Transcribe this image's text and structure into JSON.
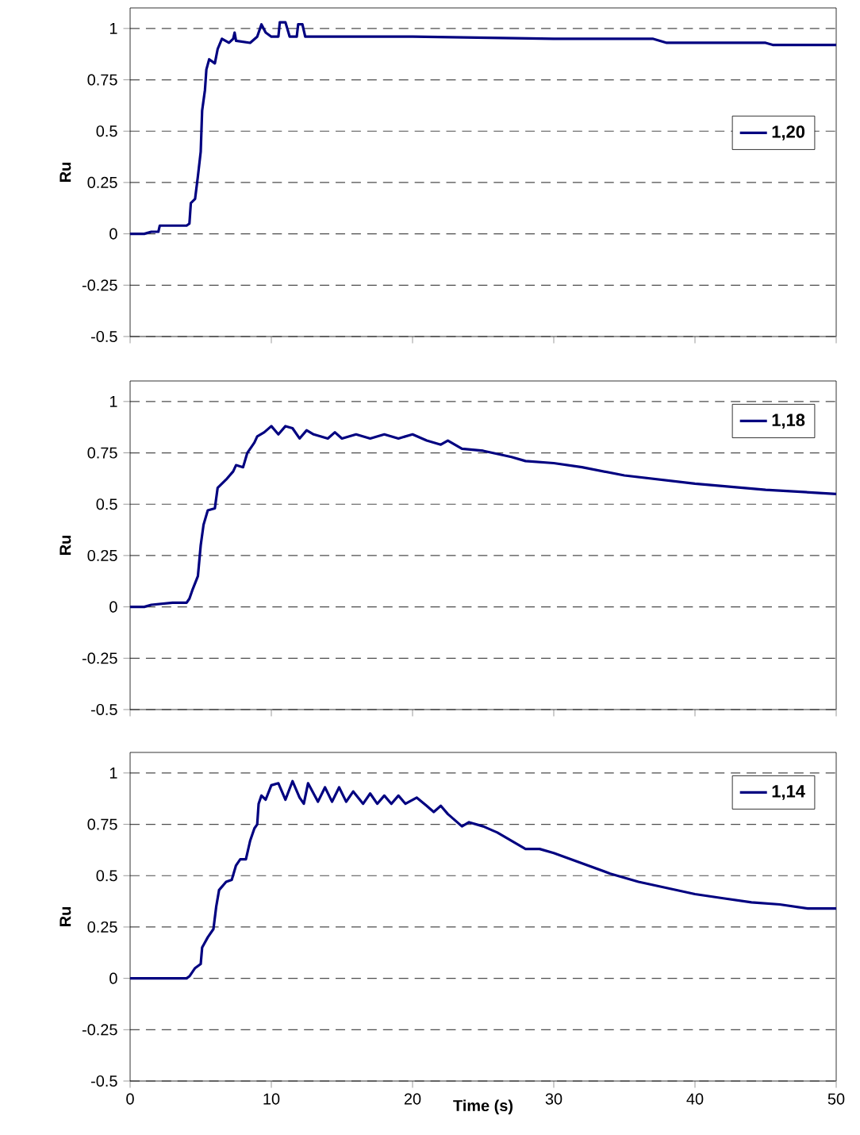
{
  "chart_data": [
    {
      "type": "line",
      "ylabel": "Ru",
      "xlim": [
        0,
        50
      ],
      "xticks": [
        0,
        10,
        20,
        30,
        40,
        50
      ],
      "ylim": [
        -0.5,
        1.1
      ],
      "yticks": [
        -0.5,
        -0.25,
        0,
        0.25,
        0.5,
        0.75,
        1
      ],
      "grid": "y",
      "legend": "right",
      "tick_labels": "y",
      "line_style": "solid",
      "series": [
        {
          "name": "1,20",
          "color": "#000080",
          "x": [
            0,
            1,
            1.5,
            2,
            2.1,
            4,
            4.2,
            4.3,
            4.6,
            4.8,
            5,
            5.1,
            5.3,
            5.4,
            5.6,
            6,
            6.2,
            6.5,
            7,
            7.3,
            7.4,
            7.5,
            8.5,
            9,
            9.3,
            9.6,
            10,
            10.5,
            10.6,
            11,
            11.3,
            11.8,
            11.9,
            12.2,
            12.4,
            20,
            30,
            37,
            38,
            45,
            45.5,
            50
          ],
          "values": [
            0,
            0,
            0.01,
            0.01,
            0.04,
            0.04,
            0.05,
            0.15,
            0.17,
            0.28,
            0.4,
            0.6,
            0.7,
            0.8,
            0.85,
            0.83,
            0.9,
            0.95,
            0.93,
            0.95,
            0.98,
            0.94,
            0.93,
            0.96,
            1.02,
            0.98,
            0.96,
            0.96,
            1.03,
            1.03,
            0.96,
            0.96,
            1.02,
            1.02,
            0.96,
            0.96,
            0.95,
            0.95,
            0.93,
            0.93,
            0.92,
            0.92
          ]
        }
      ]
    },
    {
      "type": "line",
      "ylabel": "Ru",
      "xlim": [
        0,
        50
      ],
      "xticks": [
        0,
        10,
        20,
        30,
        40,
        50
      ],
      "ylim": [
        -0.5,
        1.1
      ],
      "yticks": [
        -0.5,
        -0.25,
        0,
        0.25,
        0.5,
        0.75,
        1
      ],
      "grid": "y",
      "legend": "top right",
      "tick_labels": "y",
      "line_style": "solid",
      "series": [
        {
          "name": "1,18",
          "color": "#000080",
          "x": [
            0,
            1,
            1.5,
            3,
            4,
            4.2,
            4.4,
            4.8,
            5,
            5.2,
            5.5,
            6,
            6.2,
            6.8,
            7.3,
            7.5,
            8,
            8.3,
            8.8,
            9,
            9.5,
            10,
            10.5,
            11,
            11.5,
            12,
            12.5,
            13,
            14,
            14.5,
            15,
            16,
            17,
            18,
            19,
            20,
            21,
            22,
            22.5,
            23.5,
            25,
            27,
            28,
            30,
            32,
            35,
            40,
            45,
            50
          ],
          "values": [
            0,
            0,
            0.01,
            0.02,
            0.02,
            0.04,
            0.08,
            0.15,
            0.3,
            0.4,
            0.47,
            0.48,
            0.58,
            0.62,
            0.66,
            0.69,
            0.68,
            0.75,
            0.8,
            0.83,
            0.85,
            0.88,
            0.84,
            0.88,
            0.87,
            0.82,
            0.86,
            0.84,
            0.82,
            0.85,
            0.82,
            0.84,
            0.82,
            0.84,
            0.82,
            0.84,
            0.81,
            0.79,
            0.81,
            0.77,
            0.76,
            0.73,
            0.71,
            0.7,
            0.68,
            0.64,
            0.6,
            0.57,
            0.55
          ]
        }
      ]
    },
    {
      "type": "line",
      "xlabel": "Time (s)",
      "ylabel": "Ru",
      "xlim": [
        0,
        50
      ],
      "xticks": [
        0,
        10,
        20,
        30,
        40,
        50
      ],
      "ylim": [
        -0.5,
        1.1
      ],
      "yticks": [
        -0.5,
        -0.25,
        0,
        0.25,
        0.5,
        0.75,
        1
      ],
      "grid": "y",
      "legend": "top right",
      "line_style": "solid",
      "series": [
        {
          "name": "1,14",
          "color": "#000080",
          "x": [
            0,
            4,
            4.2,
            4.6,
            5,
            5.1,
            5.5,
            5.9,
            6.1,
            6.3,
            6.8,
            7.2,
            7.5,
            7.8,
            8.2,
            8.5,
            8.8,
            9,
            9.1,
            9.3,
            9.6,
            10,
            10.5,
            11,
            11.5,
            12,
            12.3,
            12.6,
            13.3,
            13.8,
            14.3,
            14.8,
            15.3,
            15.8,
            16.5,
            17,
            17.5,
            18,
            18.5,
            19,
            19.5,
            20.3,
            21,
            21.5,
            22,
            22.5,
            23,
            23.5,
            24,
            25,
            26,
            27,
            28,
            29,
            30,
            32,
            34,
            36,
            38,
            40,
            42,
            44,
            46,
            48,
            50
          ],
          "values": [
            0,
            0,
            0.01,
            0.05,
            0.07,
            0.15,
            0.2,
            0.24,
            0.35,
            0.43,
            0.47,
            0.48,
            0.55,
            0.58,
            0.58,
            0.67,
            0.73,
            0.75,
            0.85,
            0.89,
            0.87,
            0.94,
            0.95,
            0.87,
            0.96,
            0.88,
            0.85,
            0.95,
            0.86,
            0.93,
            0.86,
            0.93,
            0.86,
            0.91,
            0.85,
            0.9,
            0.85,
            0.89,
            0.85,
            0.89,
            0.85,
            0.88,
            0.84,
            0.81,
            0.84,
            0.8,
            0.77,
            0.74,
            0.76,
            0.74,
            0.71,
            0.67,
            0.63,
            0.63,
            0.61,
            0.56,
            0.51,
            0.47,
            0.44,
            0.41,
            0.39,
            0.37,
            0.36,
            0.34,
            0.34
          ]
        }
      ]
    }
  ]
}
